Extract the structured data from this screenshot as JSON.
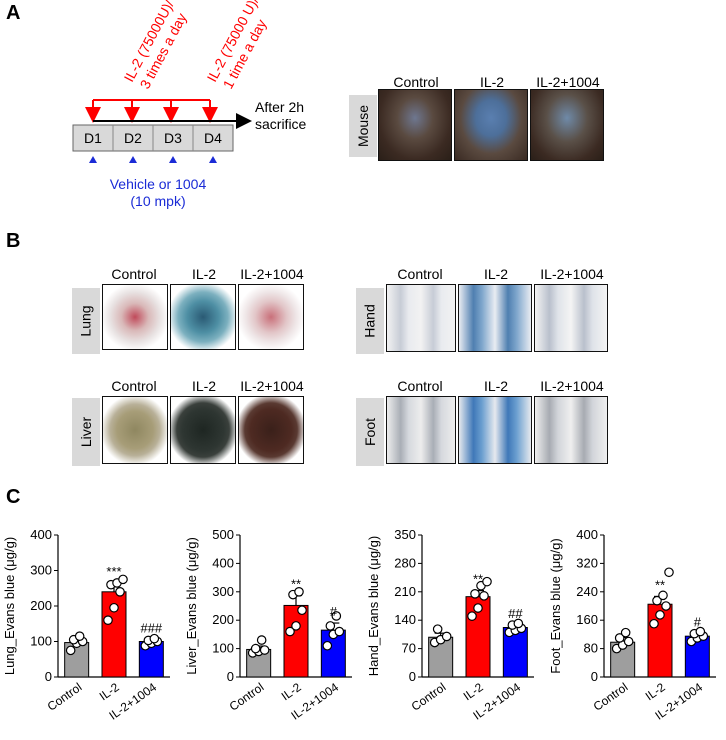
{
  "panels": {
    "a": "A",
    "b": "B",
    "c": "C"
  },
  "timeline": {
    "days": [
      "D1",
      "D2",
      "D3",
      "D4"
    ],
    "il2_three_times": [
      "IL-2 (75000U)/",
      "3 times a day"
    ],
    "il2_once": [
      "IL-2 (75000 U)/",
      "1 time a day"
    ],
    "after": [
      "After 2h",
      "sacrifice"
    ],
    "vehicle": [
      "Vehicle or 1004",
      "(10 mpk)"
    ]
  },
  "groups": [
    "Control",
    "IL-2",
    "IL-2+1004"
  ],
  "tissues": {
    "mouse": "Mouse",
    "lung": "Lung",
    "liver": "Liver",
    "hand": "Hand",
    "foot": "Foot"
  },
  "colors": {
    "control": "#9e9e9e",
    "il2": "#ff0000",
    "il2_1004": "#0000ff",
    "red_arrow": "#ff0000",
    "blue_arrow": "#1a2bd6"
  },
  "chart_data": [
    {
      "type": "bar",
      "ylabel": "Lung_Evans blue (μg/g)",
      "categories": [
        "Control",
        "IL-2",
        "IL-2+1004"
      ],
      "values": [
        97,
        240,
        100
      ],
      "errors": [
        12,
        25,
        6
      ],
      "points": [
        [
          75,
          95,
          100,
          105,
          115
        ],
        [
          160,
          195,
          240,
          260,
          265,
          275
        ],
        [
          88,
          95,
          100,
          103,
          108
        ]
      ],
      "ylim": [
        0,
        400
      ],
      "yticks": [
        0,
        100,
        200,
        300,
        400
      ],
      "annotations": [
        "",
        "***",
        "###"
      ]
    },
    {
      "type": "bar",
      "ylabel": "Liver_Evans blue (μg/g)",
      "categories": [
        "Control",
        "IL-2",
        "IL-2+1004"
      ],
      "values": [
        97,
        252,
        165
      ],
      "errors": [
        12,
        35,
        25
      ],
      "points": [
        [
          85,
          90,
          95,
          100,
          130
        ],
        [
          160,
          180,
          235,
          290,
          300
        ],
        [
          110,
          150,
          160,
          180,
          215
        ]
      ],
      "ylim": [
        0,
        500
      ],
      "yticks": [
        0,
        100,
        200,
        300,
        400,
        500
      ],
      "annotations": [
        "",
        "**",
        "#"
      ]
    },
    {
      "type": "bar",
      "ylabel": "Hand_Evans blue (μg/g)",
      "categories": [
        "Control",
        "IL-2",
        "IL-2+1004"
      ],
      "values": [
        98,
        198,
        122
      ],
      "errors": [
        10,
        15,
        6
      ],
      "points": [
        [
          85,
          92,
          100,
          118
        ],
        [
          150,
          170,
          200,
          205,
          225,
          235
        ],
        [
          110,
          115,
          120,
          128,
          132
        ]
      ],
      "ylim": [
        0,
        350
      ],
      "yticks": [
        0,
        70,
        140,
        210,
        280,
        350
      ],
      "annotations": [
        "",
        "**",
        "##"
      ]
    },
    {
      "type": "bar",
      "ylabel": "Foot_Evans blue (μg/g)",
      "categories": [
        "Control",
        "IL-2",
        "IL-2+1004"
      ],
      "values": [
        98,
        205,
        115
      ],
      "errors": [
        13,
        22,
        8
      ],
      "points": [
        [
          80,
          90,
          100,
          110,
          125
        ],
        [
          150,
          175,
          200,
          215,
          230,
          295
        ],
        [
          100,
          110,
          115,
          122,
          128
        ]
      ],
      "ylim": [
        0,
        400
      ],
      "yticks": [
        0,
        80,
        160,
        240,
        320,
        400
      ],
      "annotations": [
        "",
        "**",
        "#"
      ]
    }
  ]
}
